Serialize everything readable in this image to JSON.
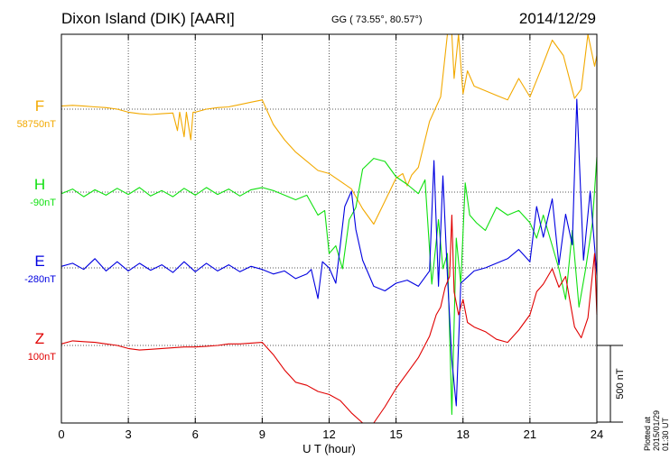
{
  "header": {
    "station": "Dixon Island (DIK)  [AARI]",
    "coords": "GG ( 73.55°,  80.57°)",
    "date": "2014/12/29"
  },
  "footer": {
    "plotted_at": "Plotted at 2015/01/29 01:30 UT"
  },
  "chart_data": {
    "type": "line",
    "title": "Dixon Island (DIK)  [AARI]",
    "xlabel": "U T (hour)",
    "xlim": [
      0,
      24
    ],
    "xticks": [
      0,
      3,
      6,
      9,
      12,
      15,
      18,
      21,
      24
    ],
    "scale_bar_label": "500 nT",
    "scale_bar_value_nT": 500,
    "colors": {
      "F": "#f2a900",
      "H": "#10e010",
      "E": "#0000e0",
      "Z": "#e00000"
    },
    "series": [
      {
        "name": "F",
        "baseline_label": "58750nT",
        "x": [
          0,
          0.5,
          1,
          1.5,
          2,
          2.5,
          3,
          3.5,
          4,
          4.5,
          5,
          5.2,
          5.3,
          5.5,
          5.6,
          5.8,
          5.9,
          6,
          6.5,
          7,
          7.5,
          8,
          8.5,
          9,
          9.5,
          10,
          10.5,
          11,
          11.5,
          12,
          12.5,
          13,
          13.5,
          14,
          14.5,
          15,
          15.3,
          15.5,
          15.7,
          16,
          16.5,
          17,
          17.3,
          17.5,
          17.6,
          17.8,
          18,
          18.2,
          18.5,
          19,
          19.5,
          20,
          20.5,
          21,
          21.5,
          22,
          22.5,
          23,
          23.3,
          23.6,
          23.9,
          24
        ],
        "values": [
          20,
          25,
          20,
          15,
          10,
          0,
          -20,
          -30,
          -35,
          -30,
          -25,
          -140,
          -20,
          -180,
          -20,
          -200,
          -20,
          -20,
          0,
          10,
          15,
          30,
          45,
          60,
          -100,
          -200,
          -280,
          -340,
          -400,
          -420,
          -470,
          -520,
          -650,
          -750,
          -600,
          -450,
          -420,
          -500,
          -430,
          -380,
          -80,
          80,
          500,
          800,
          200,
          600,
          100,
          250,
          150,
          120,
          90,
          60,
          200,
          80,
          260,
          450,
          350,
          70,
          130,
          500,
          280,
          350
        ]
      },
      {
        "name": "H",
        "baseline_label": "-90nT",
        "x": [
          0,
          0.5,
          1,
          1.5,
          2,
          2.5,
          3,
          3.5,
          4,
          4.5,
          5,
          5.5,
          6,
          6.5,
          7,
          7.5,
          8,
          8.5,
          9,
          9.5,
          10,
          10.5,
          11,
          11.5,
          11.8,
          12,
          12.3,
          12.6,
          12.9,
          13.2,
          13.5,
          14,
          14.5,
          15,
          15.5,
          16,
          16.3,
          16.6,
          16.9,
          17.1,
          17.3,
          17.5,
          17.7,
          17.9,
          18.1,
          18.3,
          18.6,
          19,
          19.5,
          20,
          20.5,
          21,
          21.3,
          21.6,
          22,
          22.3,
          22.6,
          22.9,
          23.2,
          23.5,
          23.8,
          24
        ],
        "values": [
          -10,
          20,
          -30,
          15,
          -20,
          25,
          -15,
          30,
          -25,
          10,
          -30,
          25,
          -20,
          30,
          -15,
          20,
          -25,
          15,
          30,
          10,
          -20,
          -50,
          -20,
          -150,
          -120,
          -400,
          -350,
          -500,
          -180,
          -100,
          150,
          220,
          200,
          100,
          50,
          -10,
          80,
          -600,
          -180,
          -500,
          -400,
          -1450,
          -300,
          -600,
          60,
          -150,
          -200,
          -250,
          -100,
          -150,
          -120,
          -200,
          -300,
          -150,
          -350,
          -500,
          -700,
          -250,
          -750,
          -500,
          -200,
          230
        ]
      },
      {
        "name": "E",
        "baseline_label": "-280nT",
        "x": [
          0,
          0.5,
          1,
          1.5,
          2,
          2.5,
          3,
          3.5,
          4,
          4.5,
          5,
          5.5,
          6,
          6.5,
          7,
          7.5,
          8,
          8.5,
          9,
          9.5,
          10,
          10.5,
          11,
          11.2,
          11.5,
          11.7,
          12,
          12.3,
          12.5,
          12.7,
          13,
          13.2,
          13.5,
          14,
          14.5,
          15,
          15.5,
          16,
          16.5,
          16.7,
          16.9,
          17.1,
          17.3,
          17.5,
          17.7,
          17.9,
          18.2,
          18.5,
          19,
          19.5,
          20,
          20.5,
          21,
          21.3,
          21.6,
          22,
          22.3,
          22.6,
          22.9,
          23.1,
          23.4,
          23.7,
          24
        ],
        "values": [
          10,
          30,
          -10,
          60,
          -20,
          40,
          -20,
          30,
          -15,
          20,
          -30,
          40,
          -25,
          30,
          -20,
          20,
          -25,
          10,
          -10,
          -40,
          -20,
          -70,
          -40,
          -10,
          -200,
          40,
          0,
          -100,
          150,
          400,
          500,
          250,
          50,
          -120,
          -150,
          -100,
          -80,
          -120,
          -20,
          700,
          -120,
          600,
          -50,
          -600,
          -900,
          -100,
          -60,
          -20,
          0,
          30,
          60,
          120,
          40,
          400,
          200,
          450,
          20,
          350,
          150,
          1100,
          50,
          500,
          -50
        ]
      },
      {
        "name": "Z",
        "baseline_label": "100nT",
        "x": [
          0,
          0.5,
          1,
          1.5,
          2,
          2.5,
          3,
          3.5,
          4,
          4.5,
          5,
          5.5,
          6,
          6.5,
          7,
          7.5,
          8,
          8.5,
          9,
          9.5,
          10,
          10.5,
          11,
          11.5,
          12,
          12.5,
          13,
          13.5,
          13.8,
          14,
          14.5,
          15,
          15.5,
          16,
          16.5,
          16.8,
          17,
          17.2,
          17.4,
          17.5,
          17.6,
          17.8,
          18,
          18.2,
          18.5,
          19,
          19.5,
          20,
          20.5,
          21,
          21.3,
          21.6,
          22,
          22.3,
          22.6,
          23,
          23.3,
          23.6,
          23.9,
          24
        ],
        "values": [
          10,
          30,
          25,
          20,
          10,
          0,
          -20,
          -30,
          -25,
          -20,
          -15,
          -10,
          -10,
          -5,
          0,
          10,
          10,
          15,
          20,
          -60,
          -160,
          -240,
          -260,
          -300,
          -320,
          -360,
          -440,
          -520,
          -620,
          -540,
          -400,
          -280,
          -180,
          -80,
          60,
          200,
          250,
          380,
          450,
          850,
          350,
          200,
          300,
          150,
          120,
          90,
          40,
          20,
          100,
          200,
          350,
          400,
          500,
          380,
          450,
          120,
          50,
          180,
          600,
          200
        ]
      }
    ]
  }
}
